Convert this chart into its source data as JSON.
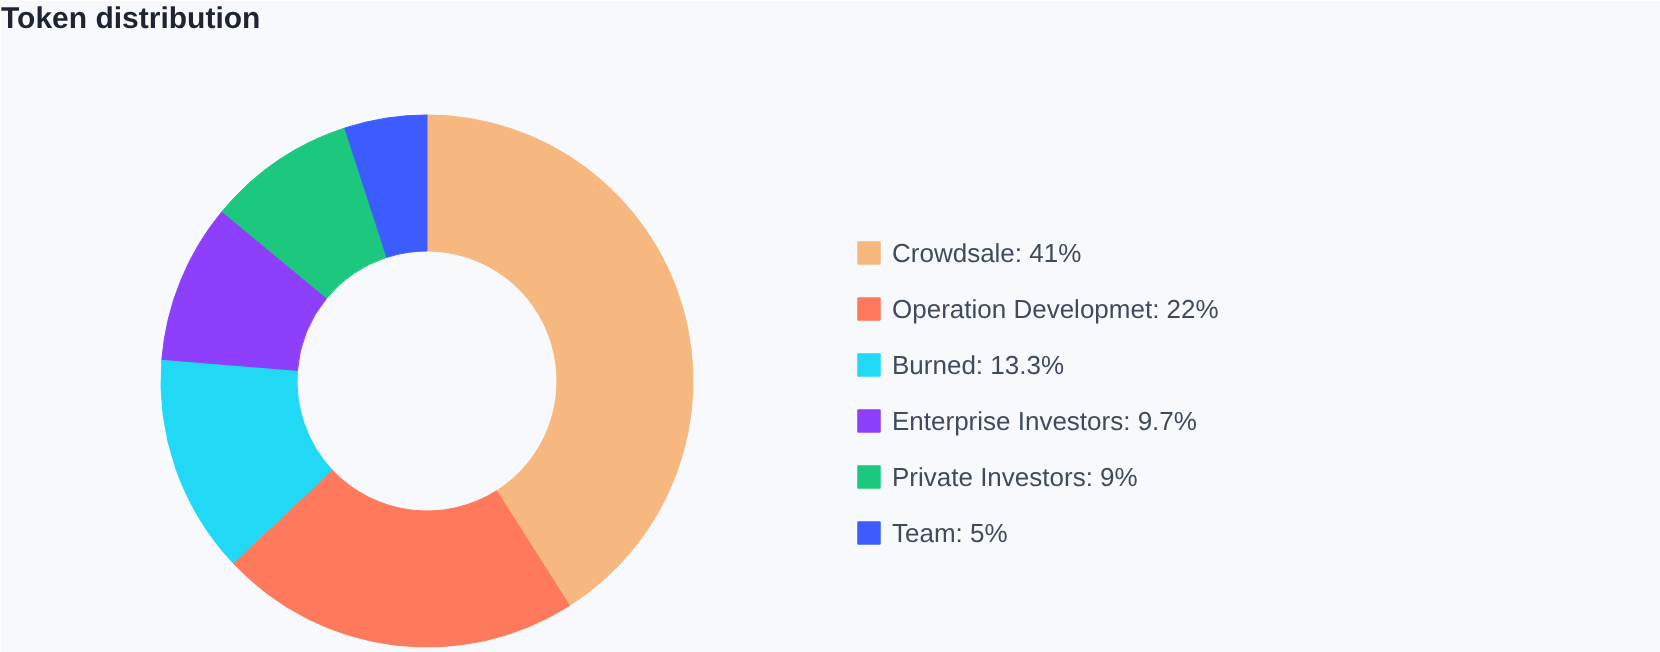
{
  "chart_data": {
    "type": "donut",
    "title": "Token distribution",
    "categories": [
      "Crowdsale",
      "Operation Developmet",
      "Burned",
      "Enterprise Investors",
      "Private Investors",
      "Team"
    ],
    "values": [
      41,
      22,
      13.3,
      9.7,
      9,
      5
    ],
    "value_labels": [
      "41%",
      "22%",
      "13.3%",
      "9.7%",
      "9%",
      "5%"
    ],
    "colors": [
      "#f6b87e",
      "#ff7a5c",
      "#22d9f5",
      "#8d3ffc",
      "#1bc87e",
      "#3d5cff"
    ],
    "legend": "right"
  }
}
